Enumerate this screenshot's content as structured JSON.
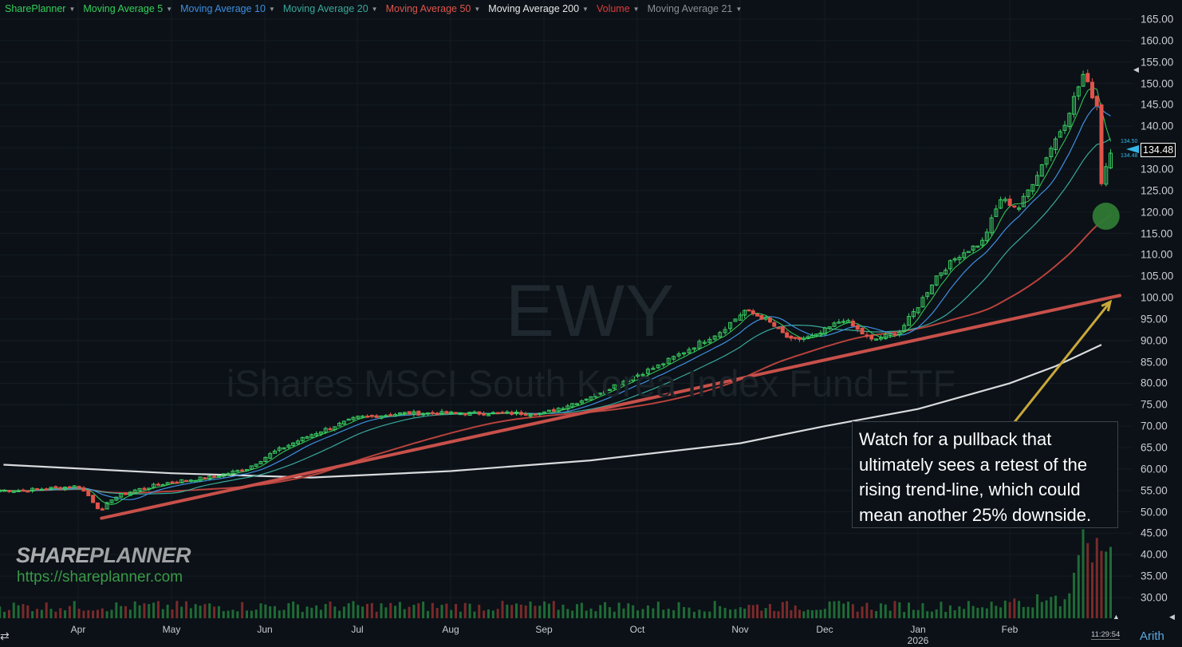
{
  "legend": {
    "items": [
      {
        "label": "SharePlanner",
        "color": "#35d05a"
      },
      {
        "label": "Moving Average 5",
        "color": "#35d05a"
      },
      {
        "label": "Moving Average 10",
        "color": "#3f8fe0"
      },
      {
        "label": "Moving Average 20",
        "color": "#3aa89a"
      },
      {
        "label": "Moving Average 50",
        "color": "#e0544a"
      },
      {
        "label": "Moving Average 200",
        "color": "#e8e8e8"
      },
      {
        "label": "Volume",
        "color": "#e23a3a"
      },
      {
        "label": "Moving Average 21",
        "color": "#8a8f94"
      }
    ]
  },
  "watermark": {
    "symbol": "EWY",
    "name": "iShares MSCI South Korea Index Fund ETF"
  },
  "annotation": {
    "text": "Watch for a pullback that ultimately sees a retest of the rising trend-line, which could mean another 25% downside."
  },
  "brand": {
    "logo_share": "SHARE",
    "logo_planner": "PLANNER",
    "url": "https://shareplanner.com"
  },
  "price_axis": {
    "ticks": [
      "165.00",
      "160.00",
      "155.00",
      "150.00",
      "145.00",
      "140.00",
      "135.00",
      "130.00",
      "125.00",
      "120.00",
      "115.00",
      "110.00",
      "105.00",
      "100.00",
      "95.00",
      "90.00",
      "85.00",
      "80.00",
      "75.00",
      "70.00",
      "65.00",
      "60.00",
      "55.00",
      "50.00",
      "45.00",
      "40.00",
      "35.00",
      "30.00"
    ],
    "last_price": "134.48",
    "bid": "134.50",
    "ask": "134.48"
  },
  "time_axis": {
    "months": [
      "Apr",
      "May",
      "Jun",
      "Jul",
      "Aug",
      "Sep",
      "Oct",
      "Nov",
      "Dec",
      "Jan",
      "Feb"
    ],
    "year": "2026",
    "clock": "11:29:54",
    "scale_mode": "Arith"
  },
  "colors": {
    "up": "#3ccf62",
    "down": "#e0544a",
    "trendline": "#c8504a",
    "arrow": "#c9a83a",
    "circle": "#2f7a35"
  },
  "chart_data": {
    "type": "candlestick",
    "symbol": "EWY",
    "price_range": [
      27,
      167
    ],
    "months": [
      "Apr",
      "May",
      "Jun",
      "Jul",
      "Aug",
      "Sep",
      "Oct",
      "Nov",
      "Dec",
      "Jan",
      "Feb"
    ],
    "close_anchors": [
      {
        "month_index": -0.6,
        "close": 55
      },
      {
        "month_index": 0.0,
        "close": 56
      },
      {
        "month_index": 0.1,
        "close": 54
      },
      {
        "month_index": 0.25,
        "close": 50
      },
      {
        "month_index": 0.35,
        "close": 53
      },
      {
        "month_index": 0.6,
        "close": 55
      },
      {
        "month_index": 1.0,
        "close": 57
      },
      {
        "month_index": 1.4,
        "close": 58
      },
      {
        "month_index": 1.8,
        "close": 60
      },
      {
        "month_index": 2.1,
        "close": 64
      },
      {
        "month_index": 2.5,
        "close": 68
      },
      {
        "month_index": 3.0,
        "close": 72
      },
      {
        "month_index": 3.5,
        "close": 73
      },
      {
        "month_index": 4.0,
        "close": 73
      },
      {
        "month_index": 4.5,
        "close": 73
      },
      {
        "month_index": 5.0,
        "close": 73
      },
      {
        "month_index": 5.4,
        "close": 76
      },
      {
        "month_index": 5.8,
        "close": 80
      },
      {
        "month_index": 6.2,
        "close": 84
      },
      {
        "month_index": 6.5,
        "close": 88
      },
      {
        "month_index": 6.8,
        "close": 92
      },
      {
        "month_index": 7.05,
        "close": 97
      },
      {
        "month_index": 7.3,
        "close": 95
      },
      {
        "month_index": 7.6,
        "close": 90
      },
      {
        "month_index": 7.9,
        "close": 91
      },
      {
        "month_index": 8.2,
        "close": 95
      },
      {
        "month_index": 8.5,
        "close": 90
      },
      {
        "month_index": 8.8,
        "close": 92
      },
      {
        "month_index": 9.0,
        "close": 98
      },
      {
        "month_index": 9.2,
        "close": 105
      },
      {
        "month_index": 9.45,
        "close": 110
      },
      {
        "month_index": 9.7,
        "close": 113
      },
      {
        "month_index": 9.9,
        "close": 123
      },
      {
        "month_index": 10.1,
        "close": 121
      },
      {
        "month_index": 10.35,
        "close": 131
      },
      {
        "month_index": 10.6,
        "close": 141
      },
      {
        "month_index": 10.8,
        "close": 152
      },
      {
        "month_index": 10.95,
        "close": 145
      },
      {
        "month_index": 11.0,
        "close": 127
      },
      {
        "month_index": 11.1,
        "close": 134.48
      }
    ],
    "moving_average_200": [
      {
        "month_index": -0.8,
        "value": 61
      },
      {
        "month_index": 1.0,
        "value": 59
      },
      {
        "month_index": 2.5,
        "value": 58
      },
      {
        "month_index": 4.0,
        "value": 59.5
      },
      {
        "month_index": 5.5,
        "value": 62
      },
      {
        "month_index": 7.0,
        "value": 66
      },
      {
        "month_index": 8.0,
        "value": 70
      },
      {
        "month_index": 9.0,
        "value": 74
      },
      {
        "month_index": 10.0,
        "value": 80
      },
      {
        "month_index": 10.5,
        "value": 84
      },
      {
        "month_index": 11.0,
        "value": 89
      }
    ],
    "trend_line": {
      "start": {
        "month_index": 0.25,
        "value": 48.5
      },
      "end": {
        "month_index": 11.2,
        "value": 100.5
      }
    },
    "marker_circle": {
      "month_index": 11.05,
      "value": 119
    }
  }
}
